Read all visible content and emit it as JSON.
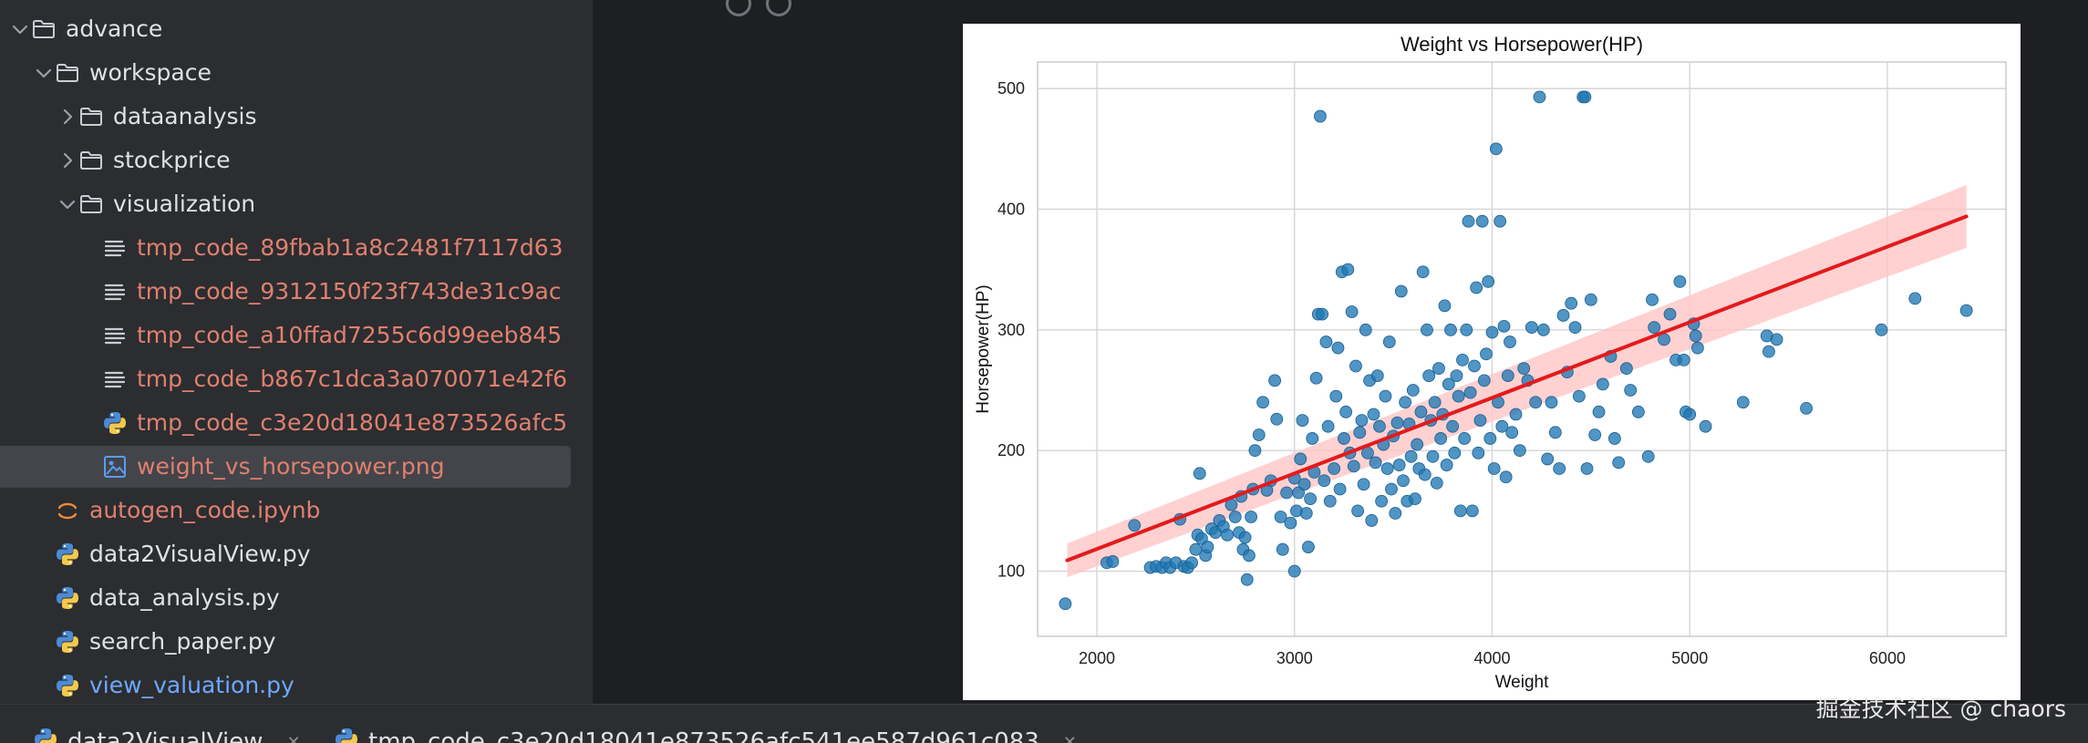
{
  "project_tree": [
    {
      "label": "advance",
      "kind": "folder",
      "expanded": true,
      "depth": 0,
      "color": "default"
    },
    {
      "label": "workspace",
      "kind": "folder",
      "expanded": true,
      "depth": 1,
      "color": "default"
    },
    {
      "label": "dataanalysis",
      "kind": "folder",
      "expanded": false,
      "depth": 2,
      "color": "default"
    },
    {
      "label": "stockprice",
      "kind": "folder",
      "expanded": false,
      "depth": 2,
      "color": "default"
    },
    {
      "label": "visualization",
      "kind": "folder",
      "expanded": true,
      "depth": 2,
      "color": "default"
    },
    {
      "label": "tmp_code_89fbab1a8c2481f7117d63",
      "kind": "text-file",
      "depth": 3,
      "color": "red"
    },
    {
      "label": "tmp_code_9312150f23f743de31c9ac",
      "kind": "text-file",
      "depth": 3,
      "color": "red"
    },
    {
      "label": "tmp_code_a10ffad7255c6d99eeb845",
      "kind": "text-file",
      "depth": 3,
      "color": "red"
    },
    {
      "label": "tmp_code_b867c1dca3a070071e42f6",
      "kind": "text-file",
      "depth": 3,
      "color": "red"
    },
    {
      "label": "tmp_code_c3e20d18041e873526afc5",
      "kind": "python-file",
      "depth": 3,
      "color": "red"
    },
    {
      "label": "weight_vs_horsepower.png",
      "kind": "image-file",
      "depth": 3,
      "color": "red",
      "selected": true
    },
    {
      "label": "autogen_code.ipynb",
      "kind": "notebook-file",
      "depth": 1,
      "color": "red"
    },
    {
      "label": "data2VisualView.py",
      "kind": "python-file",
      "depth": 1,
      "color": "default"
    },
    {
      "label": "data_analysis.py",
      "kind": "python-file",
      "depth": 1,
      "color": "default"
    },
    {
      "label": "search_paper.py",
      "kind": "python-file",
      "depth": 1,
      "color": "default"
    },
    {
      "label": "view_valuation.py",
      "kind": "python-file",
      "depth": 1,
      "color": "blue"
    }
  ],
  "tabs": [
    {
      "label": "data2VisualView",
      "icon": "python-icon"
    },
    {
      "label": "tmp_code_c3e20d18041e873526afc541ee587d961c083",
      "icon": "python-icon"
    }
  ],
  "watermark": "掘金技术社区 @ chaors",
  "colors": {
    "sidebar_bg": "#2b2d30",
    "editor_bg": "#1e1f22",
    "selection": "#43454a",
    "file_red": "#e0806f",
    "file_blue": "#6ea8fe",
    "point": "#1f77b4",
    "regression": "#e31a1c",
    "ci_band": "#ffc6c6"
  },
  "chart_data": {
    "type": "scatter",
    "title": "Weight vs Horsepower(HP)",
    "xlabel": "Weight",
    "ylabel": "Horsepower(HP)",
    "xlim": [
      1700,
      6600
    ],
    "ylim": [
      46,
      522
    ],
    "xticks": [
      2000,
      3000,
      4000,
      5000,
      6000
    ],
    "yticks": [
      100,
      200,
      300,
      400,
      500
    ],
    "grid": true,
    "regression": {
      "x": [
        1850,
        6400
      ],
      "y": [
        109,
        394
      ],
      "ci_halfwidth": [
        14,
        26
      ]
    },
    "points": [
      [
        1840,
        73
      ],
      [
        2050,
        107
      ],
      [
        2080,
        108
      ],
      [
        2190,
        138
      ],
      [
        2270,
        103
      ],
      [
        2300,
        104
      ],
      [
        2330,
        103
      ],
      [
        2350,
        107
      ],
      [
        2370,
        103
      ],
      [
        2400,
        107
      ],
      [
        2420,
        143
      ],
      [
        2440,
        104
      ],
      [
        2460,
        103
      ],
      [
        2480,
        107
      ],
      [
        2500,
        118
      ],
      [
        2510,
        130
      ],
      [
        2520,
        181
      ],
      [
        2530,
        127
      ],
      [
        2550,
        113
      ],
      [
        2560,
        120
      ],
      [
        2580,
        135
      ],
      [
        2600,
        132
      ],
      [
        2620,
        142
      ],
      [
        2640,
        137
      ],
      [
        2660,
        130
      ],
      [
        2680,
        155
      ],
      [
        2700,
        145
      ],
      [
        2720,
        132
      ],
      [
        2730,
        162
      ],
      [
        2740,
        118
      ],
      [
        2750,
        128
      ],
      [
        2760,
        93
      ],
      [
        2770,
        113
      ],
      [
        2780,
        145
      ],
      [
        2790,
        168
      ],
      [
        2800,
        200
      ],
      [
        2820,
        213
      ],
      [
        2840,
        240
      ],
      [
        2860,
        167
      ],
      [
        2880,
        175
      ],
      [
        2900,
        258
      ],
      [
        2910,
        226
      ],
      [
        2930,
        145
      ],
      [
        2940,
        118
      ],
      [
        2960,
        165
      ],
      [
        2980,
        140
      ],
      [
        3000,
        100
      ],
      [
        3000,
        177
      ],
      [
        3010,
        150
      ],
      [
        3020,
        165
      ],
      [
        3030,
        193
      ],
      [
        3040,
        225
      ],
      [
        3050,
        172
      ],
      [
        3060,
        148
      ],
      [
        3070,
        120
      ],
      [
        3080,
        160
      ],
      [
        3090,
        210
      ],
      [
        3100,
        182
      ],
      [
        3110,
        260
      ],
      [
        3120,
        313
      ],
      [
        3130,
        477
      ],
      [
        3140,
        313
      ],
      [
        3150,
        175
      ],
      [
        3160,
        290
      ],
      [
        3170,
        220
      ],
      [
        3180,
        158
      ],
      [
        3200,
        185
      ],
      [
        3210,
        245
      ],
      [
        3220,
        285
      ],
      [
        3230,
        168
      ],
      [
        3240,
        348
      ],
      [
        3250,
        210
      ],
      [
        3260,
        232
      ],
      [
        3270,
        350
      ],
      [
        3280,
        198
      ],
      [
        3290,
        315
      ],
      [
        3300,
        187
      ],
      [
        3310,
        270
      ],
      [
        3320,
        150
      ],
      [
        3330,
        215
      ],
      [
        3340,
        225
      ],
      [
        3350,
        172
      ],
      [
        3360,
        300
      ],
      [
        3370,
        198
      ],
      [
        3380,
        258
      ],
      [
        3390,
        142
      ],
      [
        3400,
        230
      ],
      [
        3410,
        190
      ],
      [
        3420,
        262
      ],
      [
        3430,
        220
      ],
      [
        3440,
        158
      ],
      [
        3450,
        205
      ],
      [
        3460,
        245
      ],
      [
        3470,
        185
      ],
      [
        3480,
        290
      ],
      [
        3490,
        168
      ],
      [
        3500,
        212
      ],
      [
        3510,
        148
      ],
      [
        3520,
        223
      ],
      [
        3530,
        188
      ],
      [
        3540,
        332
      ],
      [
        3550,
        175
      ],
      [
        3560,
        240
      ],
      [
        3570,
        158
      ],
      [
        3580,
        222
      ],
      [
        3590,
        195
      ],
      [
        3600,
        250
      ],
      [
        3610,
        160
      ],
      [
        3620,
        205
      ],
      [
        3630,
        185
      ],
      [
        3640,
        232
      ],
      [
        3650,
        348
      ],
      [
        3660,
        180
      ],
      [
        3670,
        300
      ],
      [
        3680,
        262
      ],
      [
        3690,
        225
      ],
      [
        3700,
        195
      ],
      [
        3710,
        240
      ],
      [
        3720,
        173
      ],
      [
        3730,
        268
      ],
      [
        3740,
        210
      ],
      [
        3750,
        230
      ],
      [
        3760,
        320
      ],
      [
        3770,
        188
      ],
      [
        3780,
        255
      ],
      [
        3790,
        300
      ],
      [
        3800,
        220
      ],
      [
        3810,
        198
      ],
      [
        3820,
        262
      ],
      [
        3830,
        245
      ],
      [
        3840,
        150
      ],
      [
        3850,
        275
      ],
      [
        3860,
        210
      ],
      [
        3870,
        300
      ],
      [
        3880,
        390
      ],
      [
        3890,
        248
      ],
      [
        3900,
        150
      ],
      [
        3910,
        270
      ],
      [
        3920,
        335
      ],
      [
        3930,
        198
      ],
      [
        3940,
        225
      ],
      [
        3950,
        390
      ],
      [
        3960,
        258
      ],
      [
        3970,
        280
      ],
      [
        3980,
        340
      ],
      [
        3990,
        210
      ],
      [
        4000,
        298
      ],
      [
        4010,
        185
      ],
      [
        4020,
        450
      ],
      [
        4030,
        240
      ],
      [
        4040,
        390
      ],
      [
        4050,
        220
      ],
      [
        4060,
        303
      ],
      [
        4070,
        178
      ],
      [
        4080,
        262
      ],
      [
        4090,
        290
      ],
      [
        4100,
        215
      ],
      [
        4120,
        230
      ],
      [
        4140,
        200
      ],
      [
        4160,
        268
      ],
      [
        4180,
        258
      ],
      [
        4200,
        302
      ],
      [
        4220,
        240
      ],
      [
        4240,
        493
      ],
      [
        4260,
        300
      ],
      [
        4280,
        193
      ],
      [
        4300,
        240
      ],
      [
        4320,
        215
      ],
      [
        4340,
        185
      ],
      [
        4360,
        312
      ],
      [
        4380,
        265
      ],
      [
        4400,
        322
      ],
      [
        4420,
        302
      ],
      [
        4440,
        245
      ],
      [
        4460,
        493
      ],
      [
        4470,
        493
      ],
      [
        4480,
        185
      ],
      [
        4500,
        325
      ],
      [
        4520,
        213
      ],
      [
        4540,
        232
      ],
      [
        4560,
        255
      ],
      [
        4600,
        278
      ],
      [
        4620,
        210
      ],
      [
        4640,
        190
      ],
      [
        4680,
        268
      ],
      [
        4700,
        250
      ],
      [
        4740,
        232
      ],
      [
        4790,
        195
      ],
      [
        4810,
        325
      ],
      [
        4820,
        302
      ],
      [
        4870,
        292
      ],
      [
        4900,
        313
      ],
      [
        4930,
        275
      ],
      [
        4950,
        340
      ],
      [
        4970,
        275
      ],
      [
        4980,
        232
      ],
      [
        5000,
        230
      ],
      [
        5020,
        305
      ],
      [
        5030,
        295
      ],
      [
        5040,
        285
      ],
      [
        5080,
        220
      ],
      [
        5270,
        240
      ],
      [
        5390,
        295
      ],
      [
        5400,
        282
      ],
      [
        5440,
        292
      ],
      [
        5590,
        235
      ],
      [
        5970,
        300
      ],
      [
        6140,
        326
      ],
      [
        6400,
        316
      ]
    ]
  }
}
